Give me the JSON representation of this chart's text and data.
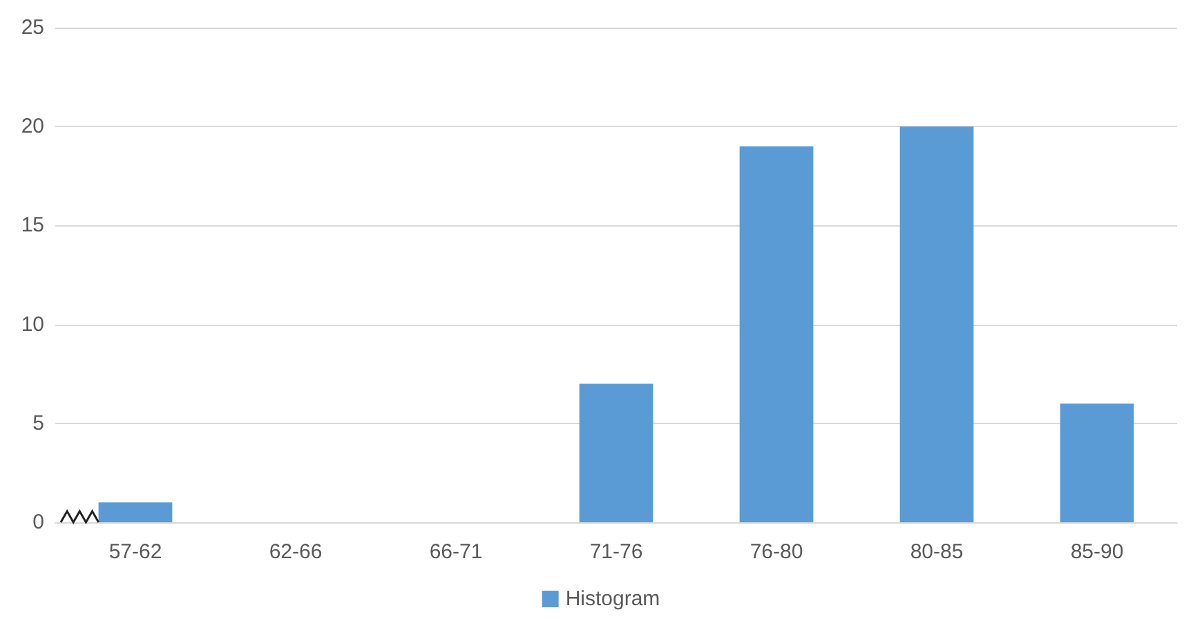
{
  "chart_data": {
    "type": "bar",
    "categories": [
      "57-62",
      "62-66",
      "66-71",
      "71-76",
      "76-80",
      "80-85",
      "85-90"
    ],
    "series": [
      {
        "name": "Histogram",
        "color": "#5b9bd5",
        "values": [
          1,
          0,
          0,
          7,
          19,
          20,
          6
        ]
      }
    ],
    "ylim": [
      0,
      25
    ],
    "yticks": [
      0,
      5,
      10,
      15,
      20,
      25
    ],
    "grid": "y",
    "legend": "bottom"
  }
}
